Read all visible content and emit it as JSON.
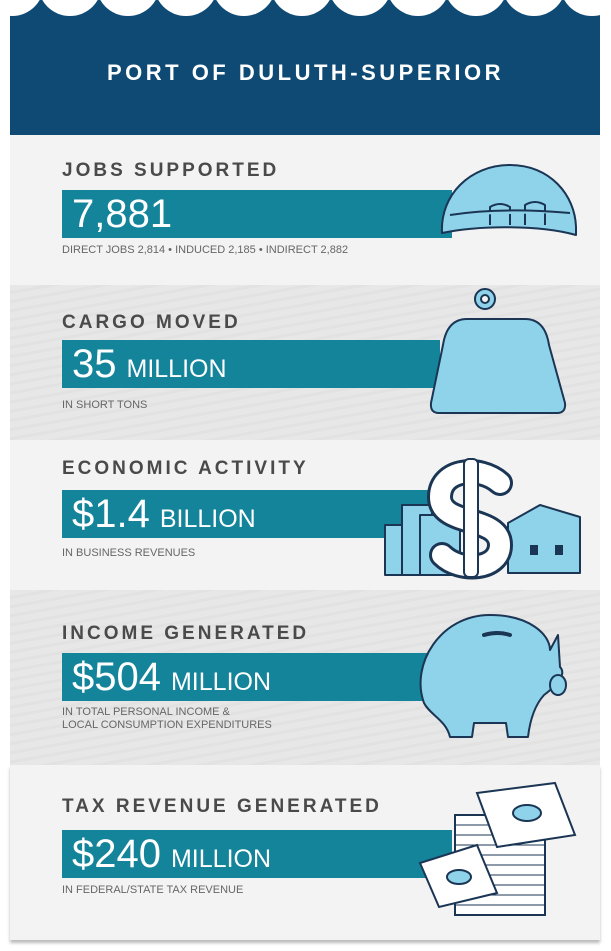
{
  "header": {
    "title": "PORT OF DULUTH-SUPERIOR"
  },
  "sections": [
    {
      "heading": "JOBS SUPPORTED",
      "value": "7,881",
      "note": [
        "DIRECT JOBS 2,814 • INDUCED 2,185 • INDIRECT 2,882"
      ]
    },
    {
      "heading": "CARGO MOVED",
      "value": "35",
      "unit": "MILLION",
      "note": [
        "IN SHORT TONS"
      ]
    },
    {
      "heading": "ECONOMIC ACTIVITY",
      "value": "$1.4",
      "unit": "BILLION",
      "note": [
        "IN BUSINESS REVENUES"
      ]
    },
    {
      "heading": "INCOME GENERATED",
      "value": "$504",
      "unit": "MILLION",
      "note": [
        "IN TOTAL PERSONAL INCOME &",
        "LOCAL CONSUMPTION EXPENDITURES"
      ]
    },
    {
      "heading": "TAX REVENUE GENERATED",
      "value": "$240",
      "unit": "MILLION",
      "note": [
        "IN FEDERAL/STATE TAX REVENUE"
      ]
    }
  ]
}
